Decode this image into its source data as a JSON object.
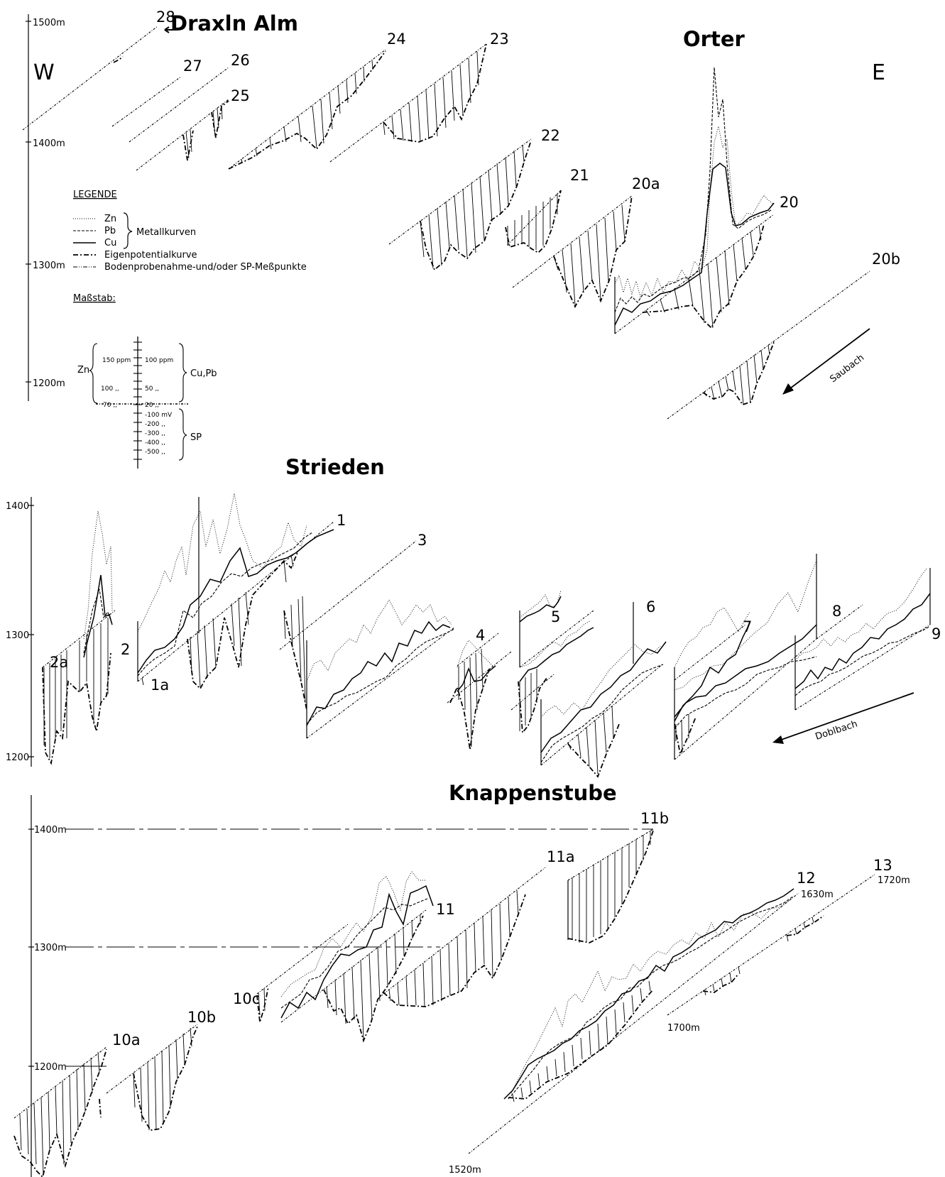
{
  "sections": {
    "draxln": "Draxln Alm",
    "orter": "Orter",
    "strieden": "Strieden",
    "knappenstube": "Knappenstube"
  },
  "directions": {
    "west": "W",
    "east": "E"
  },
  "elevation_labels": {
    "orter": [
      "1500m",
      "1400m",
      "1300m",
      "1200m"
    ],
    "strieden": [
      "1400",
      "1300",
      "1200"
    ],
    "knappenstube": [
      "1400m",
      "1300m",
      "1200m"
    ],
    "profile_ends": [
      "1630m",
      "1720m",
      "1700m",
      "1520m"
    ]
  },
  "profile_numbers": {
    "p28": "28",
    "p27": "27",
    "p26": "26",
    "p25": "25",
    "p24": "24",
    "p23": "23",
    "p22": "22",
    "p21": "21",
    "p20a": "20a",
    "p20": "20",
    "p20b": "20b",
    "p1": "1",
    "p1a": "1a",
    "p2": "2",
    "p2a": "2a",
    "p3": "3",
    "p4": "4",
    "p5": "5",
    "p6": "6",
    "p7": "7",
    "p8": "8",
    "p9": "9",
    "p10a": "10a",
    "p10b": "10b",
    "p10c": "10c",
    "p11": "11",
    "p11a": "11a",
    "p11b": "11b",
    "p12": "12",
    "p13": "13"
  },
  "streams": {
    "saubach": "Saubach",
    "doblbach": "Doblbach"
  },
  "legend": {
    "title": "LEGENDE",
    "zn": "Zn",
    "pb": "Pb",
    "cu": "Cu",
    "metal_group": "Metallkurven",
    "sp_curve": "Eigenpotentialkurve",
    "sampling": "Bodenprobenahme-und/oder SP-Meßpunkte"
  },
  "scale": {
    "title": "Maßstab:",
    "zn_label": "Zn",
    "cupb_label": "Cu,Pb",
    "sp_label": "SP",
    "zn_ticks": [
      "150 ppm",
      "100 ,,",
      "70 ,,"
    ],
    "cupb_ticks": [
      "100 ppm",
      "50 ,,",
      "20 ,,"
    ],
    "sp_ticks": [
      "-100 mV",
      "-200 ,,",
      "-300 ,,",
      "-400 ,,",
      "-500 ,,"
    ]
  },
  "line_styles": {
    "zn": "dotted",
    "pb": "dashed",
    "cu": "solid",
    "sp": "dash-dot",
    "sampling": "dash-dot-dot"
  }
}
